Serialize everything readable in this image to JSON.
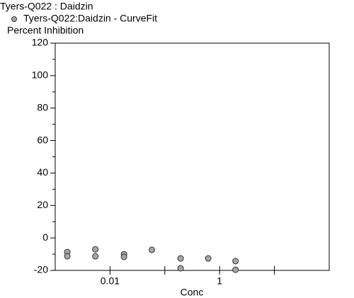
{
  "chart_data": {
    "type": "scatter",
    "title": "Tyers-Q022  : Daidzin",
    "y_label": "Percent Inhibition",
    "x_label": "Conc",
    "x_scale": "log",
    "series": [
      {
        "name": "Tyers-Q022:Daidzin - CurveFit",
        "color": "#a6a6a6",
        "x": [
          0.00166,
          0.00166,
          0.0054,
          0.0054,
          0.018,
          0.018,
          0.058,
          0.194,
          0.194,
          0.62,
          1.95,
          1.95
        ],
        "values": [
          -8.7,
          -11.3,
          -7,
          -11.3,
          -10,
          -11.7,
          -7.3,
          -12.6,
          -18.7,
          -12.6,
          -14.3,
          -19.6
        ]
      }
    ],
    "xlim": [
      0.001,
      100
    ],
    "xticks": [
      0.01,
      1
    ],
    "x_minor_ticks": [
      0.1,
      10
    ],
    "ylim": [
      -20,
      120
    ],
    "yticks": [
      -20,
      0,
      20,
      40,
      60,
      80,
      100,
      120
    ],
    "y_minor_ticks": [
      -10,
      10,
      30,
      50,
      70,
      90,
      110
    ]
  }
}
